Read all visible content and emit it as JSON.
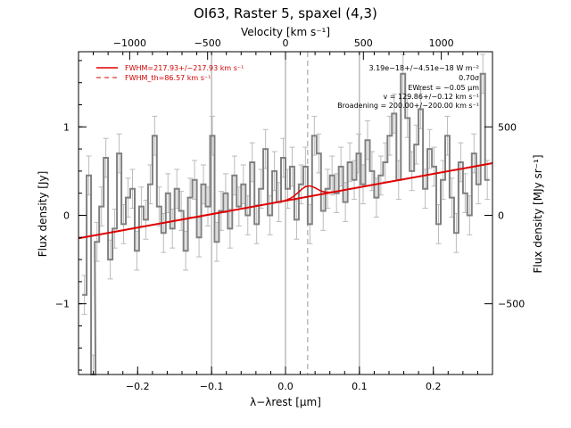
{
  "chart_data": {
    "type": "line",
    "title": "OI63, Raster 5, spaxel (4,3)",
    "xlabel": "λ−λrest [μm]",
    "ylabel": "Flux density [Jy]",
    "ylabel_right": "Flux density [MJy sr⁻¹]",
    "xlabel_top": "Velocity [km s⁻¹]",
    "xlim": [
      -0.28,
      0.28
    ],
    "ylim": [
      -1.8,
      1.85
    ],
    "x_ticks": [
      -0.2,
      -0.1,
      0.0,
      0.1,
      0.2
    ],
    "x_tick_labels": [
      "−0.2",
      "−0.1",
      "0.0",
      "0.1",
      "0.2"
    ],
    "y_ticks": [
      -1,
      0,
      1
    ],
    "y_tick_labels": [
      "−1",
      "0",
      "1"
    ],
    "top_ticks_kms": [
      -1000,
      -500,
      0,
      500,
      1000
    ],
    "top_tick_labels": [
      "−1000",
      "−500",
      "0",
      "500",
      "1000"
    ],
    "right_ticks_mjy": [
      -500,
      0,
      500
    ],
    "right_tick_labels": [
      "−500",
      "0",
      "500"
    ],
    "vlines_solid": [
      -0.1,
      0.0,
      0.1
    ],
    "vline_dashed": 0.03,
    "legend": {
      "placement": "top-left",
      "entries": [
        {
          "label": "FWHM=217.93+/−217.93 km s⁻¹",
          "style": "solid",
          "color": "#e00000"
        },
        {
          "label": "FWHM_th=86.57 km s⁻¹",
          "style": "dashed",
          "color": "#e00000"
        }
      ]
    },
    "annotations": [
      "3.19e−18+/−4.51e−18 W m⁻²",
      "0.70σ",
      "EWrest = −0.05 μm",
      "v = 129.86+/−0.12 km s⁻¹",
      "Broadening = 200.00+/−200.00 km s⁻¹"
    ],
    "fit_line": {
      "x": [
        -0.28,
        0.28
      ],
      "y": [
        -0.26,
        0.59
      ],
      "color": "#e00000"
    },
    "line_fit": {
      "center": 0.03,
      "amplitude": 0.12,
      "sigma": 0.012
    },
    "series": [
      {
        "style": "histogram",
        "color": "#808080",
        "errors": 0.22,
        "x": [
          -0.272,
          -0.266,
          -0.26,
          -0.255,
          -0.249,
          -0.243,
          -0.237,
          -0.231,
          -0.225,
          -0.219,
          -0.213,
          -0.207,
          -0.201,
          -0.195,
          -0.189,
          -0.183,
          -0.177,
          -0.171,
          -0.165,
          -0.159,
          -0.153,
          -0.147,
          -0.141,
          -0.135,
          -0.129,
          -0.123,
          -0.117,
          -0.111,
          -0.105,
          -0.099,
          -0.093,
          -0.087,
          -0.081,
          -0.075,
          -0.069,
          -0.063,
          -0.057,
          -0.051,
          -0.045,
          -0.039,
          -0.033,
          -0.027,
          -0.021,
          -0.015,
          -0.009,
          -0.003,
          0.003,
          0.009,
          0.015,
          0.021,
          0.027,
          0.033,
          0.039,
          0.045,
          0.051,
          0.057,
          0.063,
          0.069,
          0.075,
          0.081,
          0.087,
          0.093,
          0.099,
          0.105,
          0.111,
          0.117,
          0.123,
          0.129,
          0.135,
          0.141,
          0.147,
          0.153,
          0.159,
          0.165,
          0.171,
          0.177,
          0.183,
          0.189,
          0.195,
          0.201,
          0.207,
          0.213,
          0.219,
          0.225,
          0.231,
          0.237,
          0.243,
          0.249,
          0.255,
          0.261,
          0.267,
          0.273
        ],
        "y": [
          -0.9,
          0.45,
          -1.8,
          -0.3,
          0.1,
          0.65,
          -0.5,
          -0.15,
          0.7,
          -0.1,
          0.2,
          0.3,
          -0.4,
          0.1,
          -0.05,
          0.35,
          0.9,
          0.1,
          -0.2,
          0.25,
          -0.15,
          0.3,
          0.05,
          -0.4,
          0.2,
          0.4,
          -0.25,
          0.35,
          0.1,
          0.9,
          -0.3,
          0.05,
          0.25,
          -0.15,
          0.45,
          0.1,
          0.35,
          0.0,
          0.6,
          -0.1,
          0.3,
          0.75,
          0.0,
          0.5,
          0.15,
          0.65,
          0.3,
          0.55,
          -0.05,
          0.35,
          0.55,
          -0.1,
          0.9,
          0.7,
          0.05,
          0.3,
          0.45,
          0.25,
          0.55,
          0.15,
          0.6,
          0.4,
          0.7,
          0.35,
          0.85,
          0.5,
          0.2,
          0.45,
          0.6,
          0.9,
          1.15,
          0.4,
          1.6,
          1.1,
          0.5,
          0.8,
          1.2,
          0.3,
          0.75,
          0.55,
          -0.1,
          0.4,
          0.9,
          0.2,
          -0.2,
          0.6,
          0.25,
          0.0,
          0.7,
          0.35,
          1.6,
          0.4
        ]
      }
    ]
  }
}
